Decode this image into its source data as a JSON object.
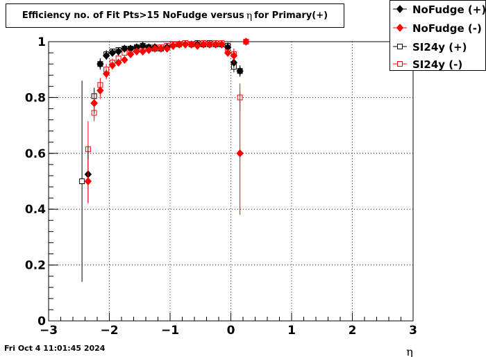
{
  "title": {
    "text_before": "Efficiency no. of Fit Pts>15 NoFudge versus",
    "symbol": "η",
    "text_after": "for Primary(+)"
  },
  "timestamp": "Fri Oct  4 11:01:45 2024",
  "chart_data": {
    "type": "scatter",
    "xlabel": "η",
    "ylabel": "",
    "xlim": [
      -3,
      3
    ],
    "ylim": [
      0,
      1.0
    ],
    "x_ticks": [
      -3,
      -2,
      -1,
      0,
      1,
      2,
      3
    ],
    "x_tick_labels": [
      "−3",
      "−2",
      "−1",
      "0",
      "1",
      "2",
      "3"
    ],
    "y_ticks": [
      0,
      0.2,
      0.4,
      0.6,
      0.8,
      1
    ],
    "y_tick_labels": [
      "0",
      "0.2",
      "0.4",
      "0.6",
      "0.8",
      "1"
    ],
    "grid": true,
    "legend_position": "top-right",
    "series": [
      {
        "name": "NoFudge (+)",
        "color": "#000000",
        "marker": "filled-diamond",
        "x": [
          -2.35,
          -2.25,
          -2.15,
          -2.05,
          -1.95,
          -1.85,
          -1.75,
          -1.65,
          -1.55,
          -1.45,
          -1.35,
          -1.25,
          -1.15,
          -1.05,
          -0.95,
          -0.85,
          -0.75,
          -0.65,
          -0.55,
          -0.45,
          -0.35,
          -0.25,
          -0.15,
          -0.05,
          0.05,
          0.15
        ],
        "y": [
          0.525,
          0.78,
          0.92,
          0.95,
          0.96,
          0.965,
          0.975,
          0.975,
          0.98,
          0.985,
          0.98,
          0.98,
          0.975,
          0.98,
          0.985,
          0.99,
          0.99,
          0.99,
          0.99,
          0.99,
          0.99,
          0.99,
          0.99,
          0.98,
          0.925,
          0.895
        ],
        "err": [
          0.1,
          0.04,
          0.02,
          0.015,
          0.01,
          0.01,
          0.01,
          0.008,
          0.008,
          0.006,
          0.006,
          0.006,
          0.006,
          0.006,
          0.005,
          0.005,
          0.005,
          0.005,
          0.005,
          0.005,
          0.005,
          0.006,
          0.008,
          0.012,
          0.02,
          0.02
        ]
      },
      {
        "name": "NoFudge (-)",
        "color": "#ff0000",
        "marker": "filled-diamond",
        "x": [
          -2.35,
          -2.25,
          -2.15,
          -2.05,
          -1.95,
          -1.85,
          -1.75,
          -1.65,
          -1.55,
          -1.45,
          -1.35,
          -1.25,
          -1.15,
          -1.05,
          -0.95,
          -0.85,
          -0.75,
          -0.65,
          -0.55,
          -0.45,
          -0.35,
          -0.25,
          -0.15,
          -0.05,
          0.05,
          0.15,
          0.25
        ],
        "y": [
          0.5,
          0.78,
          0.825,
          0.885,
          0.915,
          0.925,
          0.935,
          0.955,
          0.965,
          0.965,
          0.97,
          0.975,
          0.975,
          0.975,
          0.985,
          0.99,
          0.99,
          0.99,
          0.985,
          0.99,
          0.99,
          0.99,
          0.99,
          0.96,
          0.95,
          0.6,
          1.0
        ],
        "err": [
          0.08,
          0.04,
          0.03,
          0.02,
          0.015,
          0.012,
          0.01,
          0.008,
          0.008,
          0.007,
          0.006,
          0.006,
          0.006,
          0.006,
          0.005,
          0.005,
          0.005,
          0.005,
          0.005,
          0.005,
          0.005,
          0.006,
          0.008,
          0.012,
          0.025,
          0.22,
          0.0
        ]
      },
      {
        "name": "SI24y (+)",
        "color": "#000000",
        "marker": "open-square",
        "x": [
          -2.45,
          -2.25,
          -2.15,
          -2.05,
          -1.95,
          -1.85,
          -1.75,
          -1.65,
          -1.55,
          -1.45,
          -1.35,
          -1.25,
          -1.15,
          -1.05,
          -0.95,
          -0.85,
          -0.75,
          -0.65,
          -0.55,
          -0.45,
          -0.35,
          -0.25,
          -0.15,
          -0.05,
          0.05,
          0.15
        ],
        "y": [
          0.5,
          0.805,
          0.92,
          0.955,
          0.965,
          0.97,
          0.975,
          0.975,
          0.98,
          0.985,
          0.98,
          0.975,
          0.975,
          0.98,
          0.99,
          0.99,
          0.995,
          0.99,
          0.995,
          0.99,
          0.995,
          0.99,
          0.99,
          0.985,
          0.91,
          0.895
        ],
        "err": [
          0.36,
          0.03,
          0.02,
          0.015,
          0.01,
          0.01,
          0.01,
          0.008,
          0.008,
          0.006,
          0.006,
          0.006,
          0.006,
          0.006,
          0.005,
          0.005,
          0.005,
          0.005,
          0.005,
          0.005,
          0.005,
          0.006,
          0.008,
          0.012,
          0.02,
          0.02
        ]
      },
      {
        "name": "SI24y (-)",
        "color": "#ff0000",
        "marker": "open-square",
        "x": [
          -2.35,
          -2.25,
          -2.15,
          -2.05,
          -1.95,
          -1.85,
          -1.75,
          -1.65,
          -1.55,
          -1.45,
          -1.35,
          -1.25,
          -1.15,
          -1.05,
          -0.95,
          -0.85,
          -0.75,
          -0.65,
          -0.55,
          -0.45,
          -0.35,
          -0.25,
          -0.15,
          -0.05,
          0.05,
          0.15,
          0.25
        ],
        "y": [
          0.615,
          0.745,
          0.845,
          0.9,
          0.925,
          0.94,
          0.96,
          0.965,
          0.975,
          0.97,
          0.975,
          0.98,
          0.98,
          0.985,
          0.99,
          0.99,
          0.995,
          0.99,
          0.99,
          0.995,
          0.99,
          0.995,
          0.995,
          0.975,
          0.955,
          0.8,
          1.0
        ],
        "err": [
          0.1,
          0.03,
          0.025,
          0.02,
          0.015,
          0.012,
          0.01,
          0.008,
          0.008,
          0.007,
          0.006,
          0.006,
          0.006,
          0.006,
          0.005,
          0.005,
          0.005,
          0.005,
          0.005,
          0.005,
          0.005,
          0.006,
          0.008,
          0.012,
          0.02,
          0.05,
          0.0
        ]
      }
    ]
  }
}
